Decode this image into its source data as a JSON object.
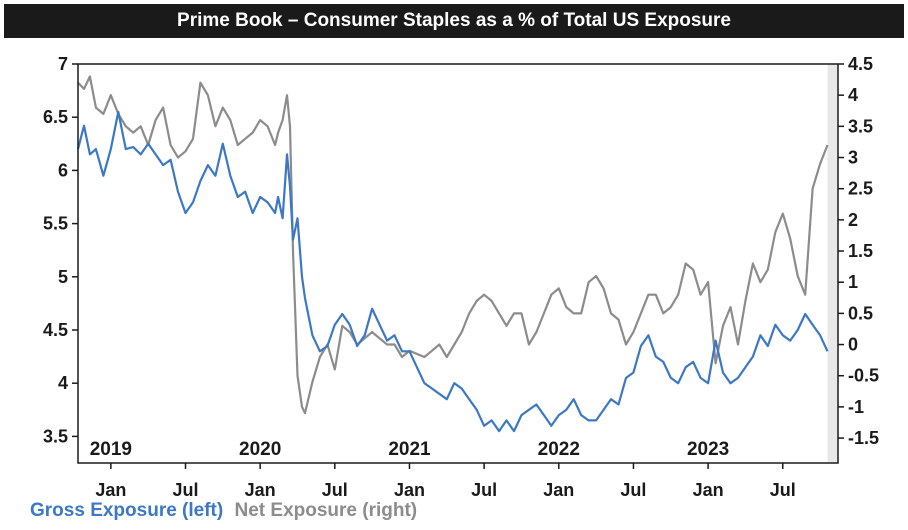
{
  "chart_data": {
    "type": "line",
    "title": "Prime Book – Consumer Staples as a % of Total US Exposure",
    "xlabel": "",
    "ylabel_left": "",
    "ylabel_right": "",
    "x_range": [
      2018.78,
      2023.87
    ],
    "y_left": {
      "lim": [
        3.25,
        7.0
      ],
      "ticks": [
        "3.5",
        "4",
        "4.5",
        "5",
        "5.5",
        "6",
        "6.5",
        "7"
      ],
      "values": [
        3.5,
        4,
        4.5,
        5,
        5.5,
        6,
        6.5,
        7
      ]
    },
    "y_right": {
      "lim": [
        -1.9,
        4.5
      ],
      "ticks": [
        "-1.5",
        "-1",
        "-0.5",
        "0",
        "0.5",
        "1",
        "1.5",
        "2",
        "2.5",
        "3",
        "3.5",
        "4",
        "4.5"
      ],
      "values": [
        -1.5,
        -1,
        -0.5,
        0,
        0.5,
        1,
        1.5,
        2,
        2.5,
        3,
        3.5,
        4,
        4.5
      ]
    },
    "x_ticks": [
      {
        "label": "Jan",
        "x": 2019.0
      },
      {
        "label": "Jul",
        "x": 2019.5
      },
      {
        "label": "Jan",
        "x": 2020.0
      },
      {
        "label": "Jul",
        "x": 2020.5
      },
      {
        "label": "Jan",
        "x": 2021.0
      },
      {
        "label": "Jul",
        "x": 2021.5
      },
      {
        "label": "Jan",
        "x": 2022.0
      },
      {
        "label": "Jul",
        "x": 2022.5
      },
      {
        "label": "Jan",
        "x": 2023.0
      },
      {
        "label": "Jul",
        "x": 2023.5
      }
    ],
    "year_labels": [
      {
        "label": "2019",
        "x": 2019.0
      },
      {
        "label": "2020",
        "x": 2020.0
      },
      {
        "label": "2021",
        "x": 2021.0
      },
      {
        "label": "2022",
        "x": 2022.0
      },
      {
        "label": "2023",
        "x": 2023.0
      }
    ],
    "shaded_region": [
      2023.8,
      2023.87
    ],
    "series": [
      {
        "name": "Gross Exposure (left)",
        "axis": "left",
        "color": "#3c78c3",
        "x": [
          2018.78,
          2018.82,
          2018.86,
          2018.9,
          2018.95,
          2019.0,
          2019.05,
          2019.1,
          2019.15,
          2019.2,
          2019.25,
          2019.3,
          2019.35,
          2019.4,
          2019.45,
          2019.5,
          2019.55,
          2019.6,
          2019.65,
          2019.7,
          2019.75,
          2019.8,
          2019.85,
          2019.9,
          2019.95,
          2020.0,
          2020.05,
          2020.1,
          2020.12,
          2020.15,
          2020.18,
          2020.2,
          2020.22,
          2020.25,
          2020.28,
          2020.3,
          2020.35,
          2020.4,
          2020.45,
          2020.5,
          2020.55,
          2020.6,
          2020.65,
          2020.7,
          2020.75,
          2020.8,
          2020.85,
          2020.9,
          2020.95,
          2021.0,
          2021.05,
          2021.1,
          2021.15,
          2021.2,
          2021.25,
          2021.3,
          2021.35,
          2021.4,
          2021.45,
          2021.5,
          2021.55,
          2021.6,
          2021.65,
          2021.7,
          2021.75,
          2021.8,
          2021.85,
          2021.9,
          2021.95,
          2022.0,
          2022.05,
          2022.1,
          2022.15,
          2022.2,
          2022.25,
          2022.3,
          2022.35,
          2022.4,
          2022.45,
          2022.5,
          2022.55,
          2022.6,
          2022.65,
          2022.7,
          2022.75,
          2022.8,
          2022.85,
          2022.9,
          2022.95,
          2023.0,
          2023.05,
          2023.1,
          2023.15,
          2023.2,
          2023.25,
          2023.3,
          2023.35,
          2023.4,
          2023.45,
          2023.5,
          2023.55,
          2023.6,
          2023.65,
          2023.7,
          2023.75,
          2023.8
        ],
        "values": [
          6.2,
          6.42,
          6.15,
          6.2,
          5.95,
          6.2,
          6.55,
          6.2,
          6.22,
          6.15,
          6.25,
          6.15,
          6.05,
          6.1,
          5.8,
          5.6,
          5.7,
          5.9,
          6.05,
          5.95,
          6.25,
          5.95,
          5.75,
          5.8,
          5.6,
          5.75,
          5.7,
          5.6,
          5.75,
          5.55,
          6.15,
          5.85,
          5.35,
          5.55,
          5.0,
          4.8,
          4.45,
          4.3,
          4.35,
          4.55,
          4.65,
          4.55,
          4.35,
          4.45,
          4.7,
          4.55,
          4.4,
          4.45,
          4.3,
          4.3,
          4.15,
          4.0,
          3.95,
          3.9,
          3.85,
          4.0,
          3.95,
          3.85,
          3.75,
          3.6,
          3.65,
          3.55,
          3.65,
          3.55,
          3.7,
          3.75,
          3.8,
          3.7,
          3.6,
          3.7,
          3.75,
          3.85,
          3.7,
          3.65,
          3.65,
          3.75,
          3.85,
          3.8,
          4.05,
          4.1,
          4.35,
          4.45,
          4.25,
          4.2,
          4.05,
          4.0,
          4.15,
          4.2,
          4.05,
          4.0,
          4.4,
          4.1,
          4.0,
          4.05,
          4.15,
          4.25,
          4.45,
          4.35,
          4.55,
          4.45,
          4.4,
          4.5,
          4.65,
          4.55,
          4.45,
          4.3
        ]
      },
      {
        "name": "Net Exposure (right)",
        "axis": "right",
        "color": "#8c8c8c",
        "x": [
          2018.78,
          2018.82,
          2018.86,
          2018.9,
          2018.95,
          2019.0,
          2019.05,
          2019.1,
          2019.15,
          2019.2,
          2019.25,
          2019.3,
          2019.35,
          2019.4,
          2019.45,
          2019.5,
          2019.55,
          2019.6,
          2019.65,
          2019.7,
          2019.75,
          2019.8,
          2019.85,
          2019.9,
          2019.95,
          2020.0,
          2020.05,
          2020.1,
          2020.12,
          2020.15,
          2020.18,
          2020.2,
          2020.22,
          2020.25,
          2020.28,
          2020.3,
          2020.35,
          2020.4,
          2020.45,
          2020.5,
          2020.55,
          2020.6,
          2020.65,
          2020.7,
          2020.75,
          2020.8,
          2020.85,
          2020.9,
          2020.95,
          2021.0,
          2021.05,
          2021.1,
          2021.15,
          2021.2,
          2021.25,
          2021.3,
          2021.35,
          2021.4,
          2021.45,
          2021.5,
          2021.55,
          2021.6,
          2021.65,
          2021.7,
          2021.75,
          2021.8,
          2021.85,
          2021.9,
          2021.95,
          2022.0,
          2022.05,
          2022.1,
          2022.15,
          2022.2,
          2022.25,
          2022.3,
          2022.35,
          2022.4,
          2022.45,
          2022.5,
          2022.55,
          2022.6,
          2022.65,
          2022.7,
          2022.75,
          2022.8,
          2022.85,
          2022.9,
          2022.95,
          2023.0,
          2023.05,
          2023.1,
          2023.15,
          2023.2,
          2023.25,
          2023.3,
          2023.35,
          2023.4,
          2023.45,
          2023.5,
          2023.55,
          2023.6,
          2023.65,
          2023.7,
          2023.75,
          2023.8
        ],
        "values": [
          4.2,
          4.1,
          4.3,
          3.8,
          3.7,
          4.0,
          3.7,
          3.5,
          3.4,
          3.5,
          3.2,
          3.6,
          3.8,
          3.2,
          3.0,
          3.1,
          3.3,
          4.2,
          4.0,
          3.5,
          3.8,
          3.6,
          3.2,
          3.3,
          3.4,
          3.6,
          3.5,
          3.2,
          3.4,
          3.6,
          4.0,
          3.5,
          1.5,
          -0.5,
          -1.0,
          -1.1,
          -0.6,
          -0.2,
          0.0,
          -0.4,
          0.3,
          0.2,
          0.0,
          0.1,
          0.2,
          0.1,
          0.0,
          0.0,
          -0.2,
          -0.1,
          -0.15,
          -0.2,
          -0.1,
          0.0,
          -0.2,
          0.0,
          0.2,
          0.5,
          0.7,
          0.8,
          0.7,
          0.5,
          0.3,
          0.5,
          0.5,
          0.0,
          0.2,
          0.5,
          0.8,
          0.9,
          0.6,
          0.5,
          0.5,
          1.0,
          1.1,
          0.9,
          0.5,
          0.4,
          0.0,
          0.2,
          0.5,
          0.8,
          0.8,
          0.5,
          0.6,
          0.8,
          1.3,
          1.2,
          0.8,
          1.0,
          -0.3,
          0.3,
          0.6,
          0.0,
          0.7,
          1.3,
          1.0,
          1.2,
          1.8,
          2.1,
          1.7,
          1.1,
          0.8,
          2.5,
          2.9,
          3.2
        ]
      }
    ]
  }
}
